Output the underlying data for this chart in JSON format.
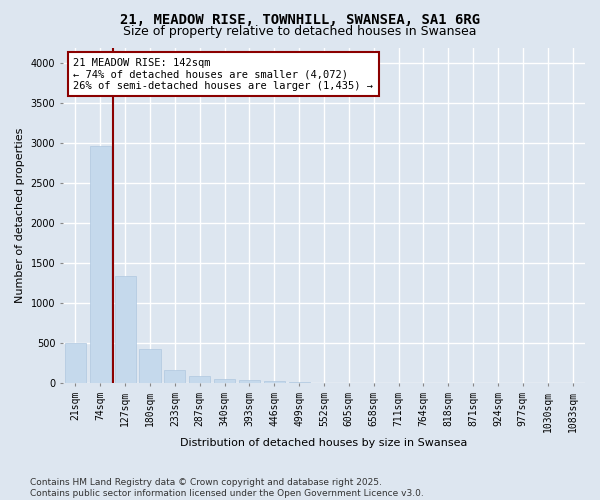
{
  "title_line1": "21, MEADOW RISE, TOWNHILL, SWANSEA, SA1 6RG",
  "title_line2": "Size of property relative to detached houses in Swansea",
  "xlabel": "Distribution of detached houses by size in Swansea",
  "ylabel": "Number of detached properties",
  "categories": [
    "21sqm",
    "74sqm",
    "127sqm",
    "180sqm",
    "233sqm",
    "287sqm",
    "340sqm",
    "393sqm",
    "446sqm",
    "499sqm",
    "552sqm",
    "605sqm",
    "658sqm",
    "711sqm",
    "764sqm",
    "818sqm",
    "871sqm",
    "924sqm",
    "977sqm",
    "1030sqm",
    "1083sqm"
  ],
  "values": [
    500,
    2970,
    1340,
    430,
    170,
    90,
    50,
    40,
    30,
    20,
    0,
    0,
    0,
    0,
    0,
    0,
    0,
    0,
    0,
    0,
    0
  ],
  "bar_color": "#c5d9ec",
  "bar_edge_color": "#b0c8e0",
  "vline_color": "#8b0000",
  "annotation_title": "21 MEADOW RISE: 142sqm",
  "annotation_line1": "← 74% of detached houses are smaller (4,072)",
  "annotation_line2": "26% of semi-detached houses are larger (1,435) →",
  "annotation_box_color": "#8b0000",
  "ylim": [
    0,
    4200
  ],
  "yticks": [
    0,
    500,
    1000,
    1500,
    2000,
    2500,
    3000,
    3500,
    4000
  ],
  "bg_color": "#dde6f0",
  "plot_bg_color": "#dde6f0",
  "grid_color": "#ffffff",
  "footnote_line1": "Contains HM Land Registry data © Crown copyright and database right 2025.",
  "footnote_line2": "Contains public sector information licensed under the Open Government Licence v3.0.",
  "title_fontsize": 10,
  "subtitle_fontsize": 9,
  "tick_fontsize": 7,
  "ylabel_fontsize": 8,
  "xlabel_fontsize": 8,
  "annotation_fontsize": 7.5,
  "footnote_fontsize": 6.5
}
